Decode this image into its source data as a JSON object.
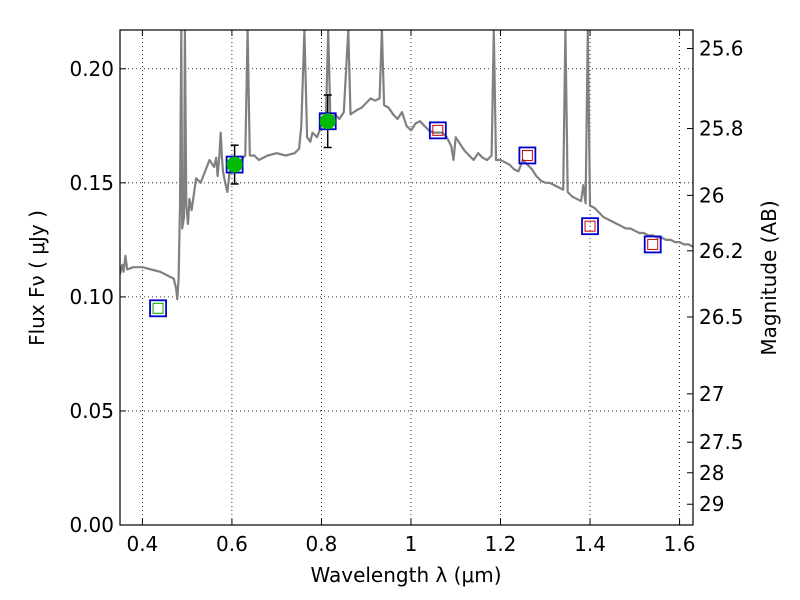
{
  "chart_data": {
    "type": "scatter",
    "xlabel": "Wavelength  λ (μm)",
    "ylabel": "Flux  Fν  ( μJy )",
    "ylabel_right": "Magnitude (AB)",
    "xlim": [
      0.35,
      1.63
    ],
    "ylim": [
      0.0,
      0.217
    ],
    "x_ticks": [
      0.4,
      0.6,
      0.8,
      1.0,
      1.2,
      1.4,
      1.6
    ],
    "x_tick_labels": [
      "0.4",
      "0.6",
      "0.8",
      "1",
      "1.2",
      "1.4",
      "1.6"
    ],
    "y_ticks": [
      0.0,
      0.05,
      0.1,
      0.15,
      0.2
    ],
    "y_tick_labels": [
      "0.00",
      "0.05",
      "0.10",
      "0.15",
      "0.20"
    ],
    "right_ticks": [
      {
        "label": "25.6",
        "flux": 0.2089
      },
      {
        "label": "25.8",
        "flux": 0.1738
      },
      {
        "label": "26",
        "flux": 0.1445
      },
      {
        "label": "26.2",
        "flux": 0.1202
      },
      {
        "label": "26.5",
        "flux": 0.0912
      },
      {
        "label": "27",
        "flux": 0.0575
      },
      {
        "label": "27.5",
        "flux": 0.0363
      },
      {
        "label": "28",
        "flux": 0.0229
      },
      {
        "label": "29",
        "flux": 0.0091
      }
    ],
    "grid": true,
    "colors": {
      "spectrum": "#808080",
      "model_box": "#0000cc",
      "detection": "#00bb00",
      "green_inner": "#00aa00",
      "red_inner": "#cc0000",
      "error_bar": "#000000"
    },
    "series": [
      {
        "kind": "model-photometry",
        "points": [
          {
            "x": 0.435,
            "y": 0.095,
            "inner": "green"
          },
          {
            "x": 0.606,
            "y": 0.158,
            "inner": "green"
          },
          {
            "x": 0.814,
            "y": 0.177,
            "inner": "green"
          },
          {
            "x": 1.06,
            "y": 0.173,
            "inner": "red"
          },
          {
            "x": 1.26,
            "y": 0.162,
            "inner": "red"
          },
          {
            "x": 1.4,
            "y": 0.131,
            "inner": "red"
          },
          {
            "x": 1.54,
            "y": 0.123,
            "inner": "red"
          }
        ]
      },
      {
        "kind": "observed-detections",
        "points": [
          {
            "x": 0.606,
            "y": 0.158,
            "err": 0.0085
          },
          {
            "x": 0.814,
            "y": 0.177,
            "err": 0.0115
          }
        ]
      }
    ],
    "spectrum": [
      [
        0.35,
        0.11
      ],
      [
        0.355,
        0.114
      ],
      [
        0.358,
        0.111
      ],
      [
        0.362,
        0.118
      ],
      [
        0.366,
        0.112
      ],
      [
        0.38,
        0.113
      ],
      [
        0.4,
        0.113
      ],
      [
        0.42,
        0.112
      ],
      [
        0.44,
        0.111
      ],
      [
        0.46,
        0.109
      ],
      [
        0.47,
        0.108
      ],
      [
        0.475,
        0.104
      ],
      [
        0.478,
        0.099
      ],
      [
        0.481,
        0.108
      ],
      [
        0.484,
        0.14
      ],
      [
        0.487,
        0.217
      ],
      [
        0.489,
        0.13
      ],
      [
        0.493,
        0.135
      ],
      [
        0.495,
        0.217
      ],
      [
        0.498,
        0.14
      ],
      [
        0.502,
        0.132
      ],
      [
        0.505,
        0.143
      ],
      [
        0.51,
        0.138
      ],
      [
        0.52,
        0.152
      ],
      [
        0.53,
        0.15
      ],
      [
        0.54,
        0.155
      ],
      [
        0.55,
        0.16
      ],
      [
        0.56,
        0.157
      ],
      [
        0.565,
        0.161
      ],
      [
        0.568,
        0.153
      ],
      [
        0.572,
        0.162
      ],
      [
        0.575,
        0.172
      ],
      [
        0.578,
        0.16
      ],
      [
        0.58,
        0.155
      ],
      [
        0.585,
        0.15
      ],
      [
        0.59,
        0.146
      ],
      [
        0.595,
        0.155
      ],
      [
        0.6,
        0.157
      ],
      [
        0.61,
        0.158
      ],
      [
        0.62,
        0.16
      ],
      [
        0.63,
        0.162
      ],
      [
        0.635,
        0.217
      ],
      [
        0.64,
        0.162
      ],
      [
        0.65,
        0.162
      ],
      [
        0.66,
        0.16
      ],
      [
        0.68,
        0.162
      ],
      [
        0.7,
        0.163
      ],
      [
        0.72,
        0.162
      ],
      [
        0.74,
        0.163
      ],
      [
        0.75,
        0.165
      ],
      [
        0.755,
        0.175
      ],
      [
        0.762,
        0.217
      ],
      [
        0.768,
        0.17
      ],
      [
        0.775,
        0.168
      ],
      [
        0.78,
        0.172
      ],
      [
        0.79,
        0.17
      ],
      [
        0.8,
        0.175
      ],
      [
        0.81,
        0.178
      ],
      [
        0.815,
        0.217
      ],
      [
        0.82,
        0.178
      ],
      [
        0.83,
        0.18
      ],
      [
        0.84,
        0.178
      ],
      [
        0.85,
        0.181
      ],
      [
        0.86,
        0.217
      ],
      [
        0.865,
        0.18
      ],
      [
        0.88,
        0.182
      ],
      [
        0.89,
        0.183
      ],
      [
        0.9,
        0.185
      ],
      [
        0.91,
        0.187
      ],
      [
        0.92,
        0.186
      ],
      [
        0.93,
        0.187
      ],
      [
        0.935,
        0.217
      ],
      [
        0.94,
        0.184
      ],
      [
        0.95,
        0.183
      ],
      [
        0.96,
        0.18
      ],
      [
        0.97,
        0.178
      ],
      [
        0.98,
        0.181
      ],
      [
        0.99,
        0.175
      ],
      [
        1.0,
        0.173
      ],
      [
        1.01,
        0.176
      ],
      [
        1.02,
        0.177
      ],
      [
        1.03,
        0.175
      ],
      [
        1.04,
        0.173
      ],
      [
        1.05,
        0.172
      ],
      [
        1.06,
        0.172
      ],
      [
        1.07,
        0.172
      ],
      [
        1.08,
        0.17
      ],
      [
        1.09,
        0.166
      ],
      [
        1.095,
        0.16
      ],
      [
        1.1,
        0.17
      ],
      [
        1.11,
        0.167
      ],
      [
        1.12,
        0.164
      ],
      [
        1.13,
        0.162
      ],
      [
        1.14,
        0.16
      ],
      [
        1.15,
        0.163
      ],
      [
        1.16,
        0.161
      ],
      [
        1.17,
        0.16
      ],
      [
        1.18,
        0.162
      ],
      [
        1.185,
        0.217
      ],
      [
        1.19,
        0.16
      ],
      [
        1.2,
        0.16
      ],
      [
        1.21,
        0.159
      ],
      [
        1.22,
        0.158
      ],
      [
        1.23,
        0.156
      ],
      [
        1.24,
        0.155
      ],
      [
        1.25,
        0.16
      ],
      [
        1.26,
        0.158
      ],
      [
        1.27,
        0.156
      ],
      [
        1.28,
        0.153
      ],
      [
        1.29,
        0.151
      ],
      [
        1.3,
        0.15
      ],
      [
        1.31,
        0.15
      ],
      [
        1.32,
        0.149
      ],
      [
        1.33,
        0.148
      ],
      [
        1.34,
        0.147
      ],
      [
        1.345,
        0.217
      ],
      [
        1.35,
        0.146
      ],
      [
        1.36,
        0.144
      ],
      [
        1.37,
        0.143
      ],
      [
        1.38,
        0.142
      ],
      [
        1.385,
        0.149
      ],
      [
        1.39,
        0.141
      ],
      [
        1.395,
        0.217
      ],
      [
        1.4,
        0.14
      ],
      [
        1.41,
        0.139
      ],
      [
        1.42,
        0.137
      ],
      [
        1.43,
        0.135
      ],
      [
        1.44,
        0.134
      ],
      [
        1.45,
        0.133
      ],
      [
        1.46,
        0.132
      ],
      [
        1.47,
        0.131
      ],
      [
        1.48,
        0.13
      ],
      [
        1.49,
        0.13
      ],
      [
        1.5,
        0.129
      ],
      [
        1.51,
        0.128
      ],
      [
        1.52,
        0.128
      ],
      [
        1.53,
        0.127
      ],
      [
        1.54,
        0.127
      ],
      [
        1.55,
        0.126
      ],
      [
        1.56,
        0.126
      ],
      [
        1.57,
        0.125
      ],
      [
        1.58,
        0.125
      ],
      [
        1.59,
        0.124
      ],
      [
        1.6,
        0.124
      ],
      [
        1.61,
        0.123
      ],
      [
        1.62,
        0.123
      ],
      [
        1.63,
        0.122
      ]
    ]
  }
}
